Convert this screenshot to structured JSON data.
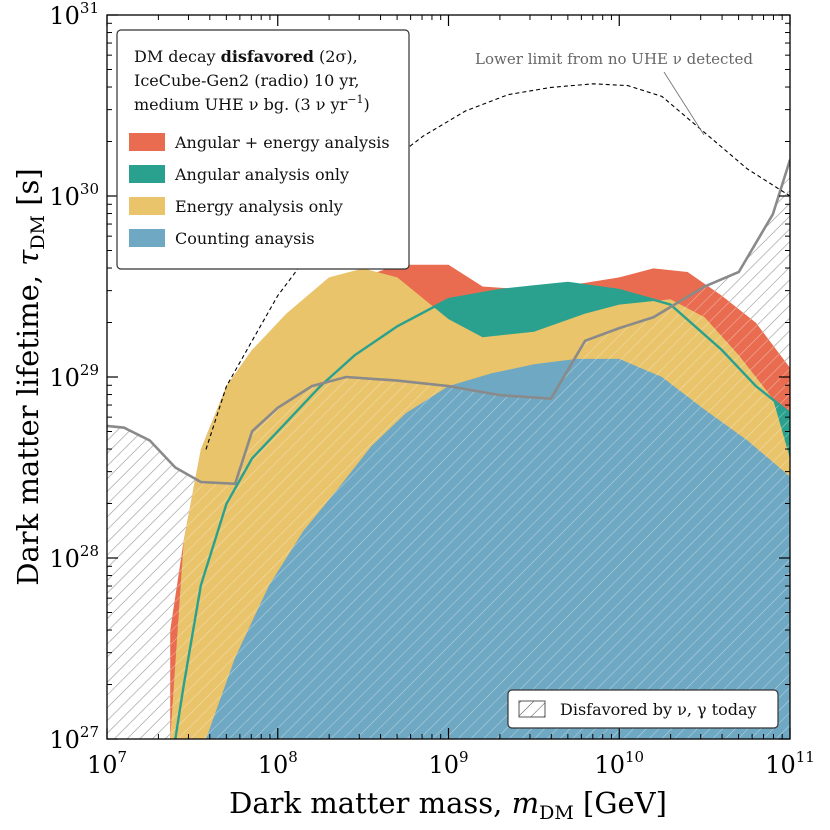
{
  "chart_data": {
    "type": "area",
    "title": "",
    "xlabel": "Dark matter mass, m_DM [GeV]",
    "xlabel_parts": {
      "prefix": "Dark matter mass, ",
      "var": "m",
      "sub": "DM",
      "unit": " [GeV]"
    },
    "ylabel": "Dark matter lifetime, τ_DM [s]",
    "ylabel_parts": {
      "prefix": "Dark matter lifetime, ",
      "var": "τ",
      "sub": "DM",
      "unit": " [s]"
    },
    "x_scale": "log",
    "y_scale": "log",
    "xlim_log10": [
      7,
      11
    ],
    "ylim_log10": [
      27,
      31
    ],
    "x_ticks": [
      {
        "base": "10",
        "exp": "7"
      },
      {
        "base": "10",
        "exp": "8"
      },
      {
        "base": "10",
        "exp": "9"
      },
      {
        "base": "10",
        "exp": "10"
      },
      {
        "base": "10",
        "exp": "11"
      }
    ],
    "y_ticks": [
      {
        "base": "10",
        "exp": "27"
      },
      {
        "base": "10",
        "exp": "28"
      },
      {
        "base": "10",
        "exp": "29"
      },
      {
        "base": "10",
        "exp": "30"
      },
      {
        "base": "10",
        "exp": "31"
      }
    ],
    "legend": {
      "title_lines": [
        {
          "pre": "DM decay ",
          "bold": "disfavored",
          "post": " (2σ),"
        },
        {
          "pre": "IceCube-Gen2 (radio) 10 yr,",
          "bold": "",
          "post": ""
        },
        {
          "pre": "medium UHE ν bg. (3 ν yr",
          "bold": "",
          "post": ")",
          "sup": "−1"
        }
      ],
      "position": "top-left",
      "entries": [
        {
          "label": "Angular + energy analysis",
          "color": "#e96c50"
        },
        {
          "label": "Angular analysis only",
          "color": "#2aa18f"
        },
        {
          "label": "Energy analysis only",
          "color": "#e9c46a"
        },
        {
          "label": "Counting anaysis",
          "color": "#6fa8c3"
        }
      ]
    },
    "hatch_legend": {
      "label": "Disfavored by ν, γ today",
      "position": "bottom-right"
    },
    "annotation": {
      "text": "Lower limit from no UHE ν detected"
    },
    "series": [
      {
        "name": "Angular + energy analysis",
        "kind": "region",
        "color": "#e96c50",
        "points_log10": [
          [
            7.37,
            27.6
          ],
          [
            7.45,
            28.1
          ],
          [
            7.55,
            28.6
          ],
          [
            7.7,
            28.95
          ],
          [
            7.85,
            29.15
          ],
          [
            8.1,
            29.32
          ],
          [
            8.3,
            29.45
          ],
          [
            8.5,
            29.55
          ],
          [
            8.7,
            29.62
          ],
          [
            9.0,
            29.62
          ],
          [
            9.2,
            29.5
          ],
          [
            9.5,
            29.48
          ],
          [
            9.8,
            29.52
          ],
          [
            10.0,
            29.55
          ],
          [
            10.2,
            29.6
          ],
          [
            10.4,
            29.58
          ],
          [
            10.6,
            29.45
          ],
          [
            10.8,
            29.3
          ],
          [
            11.0,
            29.05
          ]
        ]
      },
      {
        "name": "Angular analysis only",
        "kind": "line",
        "color": "#2aa18f",
        "points_log10": [
          [
            7.4,
            27.0
          ],
          [
            7.45,
            27.3
          ],
          [
            7.55,
            27.85
          ],
          [
            7.7,
            28.3
          ],
          [
            7.85,
            28.55
          ],
          [
            8.05,
            28.75
          ],
          [
            8.25,
            28.95
          ],
          [
            8.45,
            29.12
          ],
          [
            8.7,
            29.28
          ],
          [
            9.0,
            29.43
          ],
          [
            9.3,
            29.48
          ],
          [
            9.5,
            29.5
          ],
          [
            9.7,
            29.52
          ],
          [
            10.0,
            29.48
          ],
          [
            10.3,
            29.4
          ],
          [
            10.6,
            29.15
          ],
          [
            10.8,
            28.95
          ],
          [
            11.0,
            28.8
          ]
        ]
      },
      {
        "name": "Energy analysis only",
        "kind": "region",
        "color": "#e9c46a",
        "points_log10": [
          [
            7.37,
            27.0
          ],
          [
            7.45,
            28.1
          ],
          [
            7.55,
            28.6
          ],
          [
            7.7,
            28.95
          ],
          [
            7.85,
            29.15
          ],
          [
            8.05,
            29.35
          ],
          [
            8.3,
            29.55
          ],
          [
            8.5,
            29.6
          ],
          [
            8.7,
            29.55
          ],
          [
            9.0,
            29.32
          ],
          [
            9.2,
            29.22
          ],
          [
            9.5,
            29.25
          ],
          [
            9.8,
            29.35
          ],
          [
            10.0,
            29.4
          ],
          [
            10.3,
            29.43
          ],
          [
            10.5,
            29.33
          ],
          [
            10.7,
            29.12
          ],
          [
            10.9,
            28.88
          ],
          [
            11.0,
            28.55
          ]
        ]
      },
      {
        "name": "Counting anaysis",
        "kind": "region",
        "color": "#6fa8c3",
        "points_log10": [
          [
            7.58,
            27.0
          ],
          [
            7.75,
            27.45
          ],
          [
            7.95,
            27.85
          ],
          [
            8.15,
            28.15
          ],
          [
            8.35,
            28.38
          ],
          [
            8.55,
            28.62
          ],
          [
            8.75,
            28.8
          ],
          [
            9.0,
            28.95
          ],
          [
            9.25,
            29.02
          ],
          [
            9.5,
            29.07
          ],
          [
            9.75,
            29.1
          ],
          [
            10.0,
            29.1
          ],
          [
            10.25,
            29.0
          ],
          [
            10.5,
            28.82
          ],
          [
            10.75,
            28.65
          ],
          [
            11.0,
            28.45
          ]
        ]
      },
      {
        "name": "Disfavored by ν, γ today",
        "kind": "boundary",
        "color": "#8a8a8a",
        "points_log10": [
          [
            7.0,
            28.73
          ],
          [
            7.1,
            28.72
          ],
          [
            7.25,
            28.65
          ],
          [
            7.4,
            28.5
          ],
          [
            7.55,
            28.42
          ],
          [
            7.75,
            28.41
          ],
          [
            7.85,
            28.7
          ],
          [
            8.0,
            28.83
          ],
          [
            8.2,
            28.95
          ],
          [
            8.4,
            29.0
          ],
          [
            8.7,
            28.98
          ],
          [
            9.0,
            28.95
          ],
          [
            9.3,
            28.9
          ],
          [
            9.6,
            28.88
          ],
          [
            9.8,
            29.2
          ],
          [
            10.0,
            29.27
          ],
          [
            10.2,
            29.33
          ],
          [
            10.5,
            29.5
          ],
          [
            10.7,
            29.58
          ],
          [
            10.9,
            29.9
          ],
          [
            11.0,
            30.2
          ]
        ]
      },
      {
        "name": "Lower limit from no UHE ν detected",
        "kind": "dashed",
        "color": "#000000",
        "points_log10": [
          [
            7.58,
            28.6
          ],
          [
            7.7,
            28.95
          ],
          [
            7.85,
            29.2
          ],
          [
            8.0,
            29.45
          ],
          [
            8.2,
            29.7
          ],
          [
            8.4,
            29.95
          ],
          [
            8.6,
            30.15
          ],
          [
            8.85,
            30.33
          ],
          [
            9.1,
            30.47
          ],
          [
            9.35,
            30.56
          ],
          [
            9.6,
            30.6
          ],
          [
            9.85,
            30.62
          ],
          [
            10.05,
            30.61
          ],
          [
            10.25,
            30.55
          ],
          [
            10.5,
            30.35
          ],
          [
            10.75,
            30.15
          ],
          [
            11.0,
            30.0
          ]
        ]
      }
    ]
  }
}
